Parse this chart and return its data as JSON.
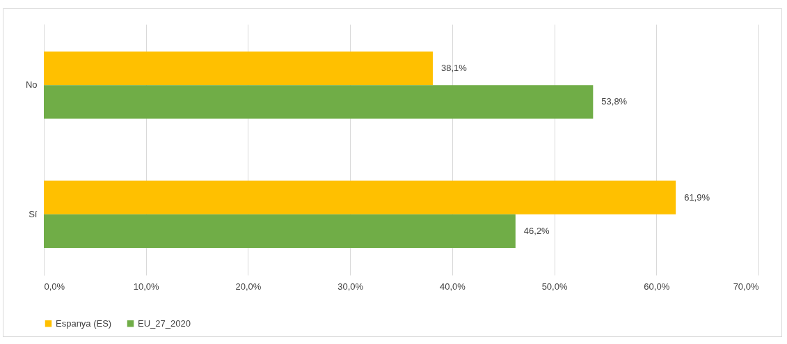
{
  "chart_data": {
    "type": "bar",
    "orientation": "horizontal",
    "categories": [
      "No",
      "Sí"
    ],
    "series": [
      {
        "name": "Espanya (ES)",
        "color": "#ffc000",
        "values": [
          38.1,
          61.9
        ],
        "value_labels": [
          "38,1%",
          "61,9%"
        ]
      },
      {
        "name": "EU_27_2020",
        "color": "#70ad47",
        "values": [
          53.8,
          46.2
        ],
        "value_labels": [
          "53,8%",
          "46,2%"
        ]
      }
    ],
    "xlim": [
      0,
      70
    ],
    "xticks": [
      {
        "value": 0,
        "label": "0,0%"
      },
      {
        "value": 10,
        "label": "10,0%"
      },
      {
        "value": 20,
        "label": "20,0%"
      },
      {
        "value": 30,
        "label": "30,0%"
      },
      {
        "value": 40,
        "label": "40,0%"
      },
      {
        "value": 50,
        "label": "50,0%"
      },
      {
        "value": 60,
        "label": "60,0%"
      },
      {
        "value": 70,
        "label": "70,0%"
      }
    ],
    "grid": "x",
    "legend": "bottom"
  }
}
